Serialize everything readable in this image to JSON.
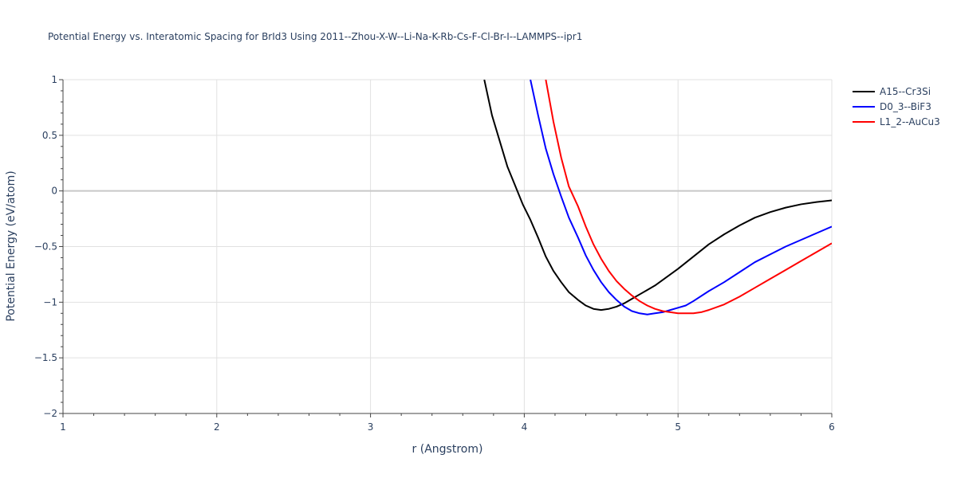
{
  "chart_data": {
    "type": "line",
    "title": "Potential Energy vs. Interatomic Spacing for BrId3 Using 2011--Zhou-X-W--Li-Na-K-Rb-Cs-F-Cl-Br-I--LAMMPS--ipr1",
    "xlabel": "r (Angstrom)",
    "ylabel": "Potential Energy (eV/atom)",
    "xlim": [
      1,
      6
    ],
    "ylim": [
      -2,
      1
    ],
    "xticks": [
      "1",
      "2",
      "3",
      "4",
      "5",
      "6"
    ],
    "yticks": [
      "1",
      "0.5",
      "0",
      "−0.5",
      "−1",
      "−1.5",
      "−2"
    ],
    "grid": true,
    "legend_position": "top-right",
    "series": [
      {
        "name": "A15--Cr3Si",
        "color": "#000000",
        "x": [
          3.74,
          3.79,
          3.84,
          3.89,
          3.94,
          3.99,
          4.04,
          4.09,
          4.14,
          4.19,
          4.24,
          4.29,
          4.35,
          4.4,
          4.45,
          4.5,
          4.55,
          4.6,
          4.65,
          4.7,
          4.75,
          4.8,
          4.85,
          4.9,
          4.95,
          5.0,
          5.1,
          5.2,
          5.3,
          5.4,
          5.5,
          5.6,
          5.7,
          5.8,
          5.9,
          6.0
        ],
        "y": [
          1.0,
          0.68,
          0.45,
          0.22,
          0.05,
          -0.12,
          -0.26,
          -0.42,
          -0.59,
          -0.72,
          -0.82,
          -0.91,
          -0.98,
          -1.03,
          -1.06,
          -1.07,
          -1.06,
          -1.04,
          -1.01,
          -0.97,
          -0.93,
          -0.89,
          -0.85,
          -0.8,
          -0.75,
          -0.7,
          -0.59,
          -0.48,
          -0.39,
          -0.31,
          -0.24,
          -0.19,
          -0.15,
          -0.12,
          -0.1,
          -0.085
        ]
      },
      {
        "name": "D0_3--BiF3",
        "color": "#0000ff",
        "x": [
          4.04,
          4.09,
          4.14,
          4.19,
          4.24,
          4.29,
          4.35,
          4.4,
          4.45,
          4.5,
          4.55,
          4.6,
          4.65,
          4.7,
          4.75,
          4.8,
          4.85,
          4.9,
          4.95,
          5.0,
          5.05,
          5.1,
          5.2,
          5.3,
          5.4,
          5.5,
          5.6,
          5.7,
          5.8,
          5.9,
          6.0
        ],
        "y": [
          1.0,
          0.68,
          0.38,
          0.15,
          -0.05,
          -0.24,
          -0.42,
          -0.58,
          -0.71,
          -0.82,
          -0.91,
          -0.98,
          -1.04,
          -1.08,
          -1.1,
          -1.11,
          -1.1,
          -1.09,
          -1.07,
          -1.05,
          -1.03,
          -0.99,
          -0.9,
          -0.82,
          -0.73,
          -0.64,
          -0.57,
          -0.5,
          -0.44,
          -0.38,
          -0.32
        ]
      },
      {
        "name": "L1_2--AuCu3",
        "color": "#ff0000",
        "x": [
          4.14,
          4.19,
          4.24,
          4.29,
          4.35,
          4.4,
          4.45,
          4.5,
          4.55,
          4.6,
          4.65,
          4.7,
          4.75,
          4.8,
          4.85,
          4.9,
          4.95,
          5.0,
          5.05,
          5.1,
          5.15,
          5.2,
          5.3,
          5.4,
          5.5,
          5.6,
          5.7,
          5.8,
          5.9,
          6.0
        ],
        "y": [
          1.0,
          0.62,
          0.3,
          0.04,
          -0.14,
          -0.32,
          -0.48,
          -0.61,
          -0.72,
          -0.81,
          -0.88,
          -0.94,
          -0.99,
          -1.03,
          -1.06,
          -1.08,
          -1.09,
          -1.1,
          -1.1,
          -1.1,
          -1.09,
          -1.07,
          -1.02,
          -0.95,
          -0.87,
          -0.79,
          -0.71,
          -0.63,
          -0.55,
          -0.47
        ]
      }
    ]
  }
}
